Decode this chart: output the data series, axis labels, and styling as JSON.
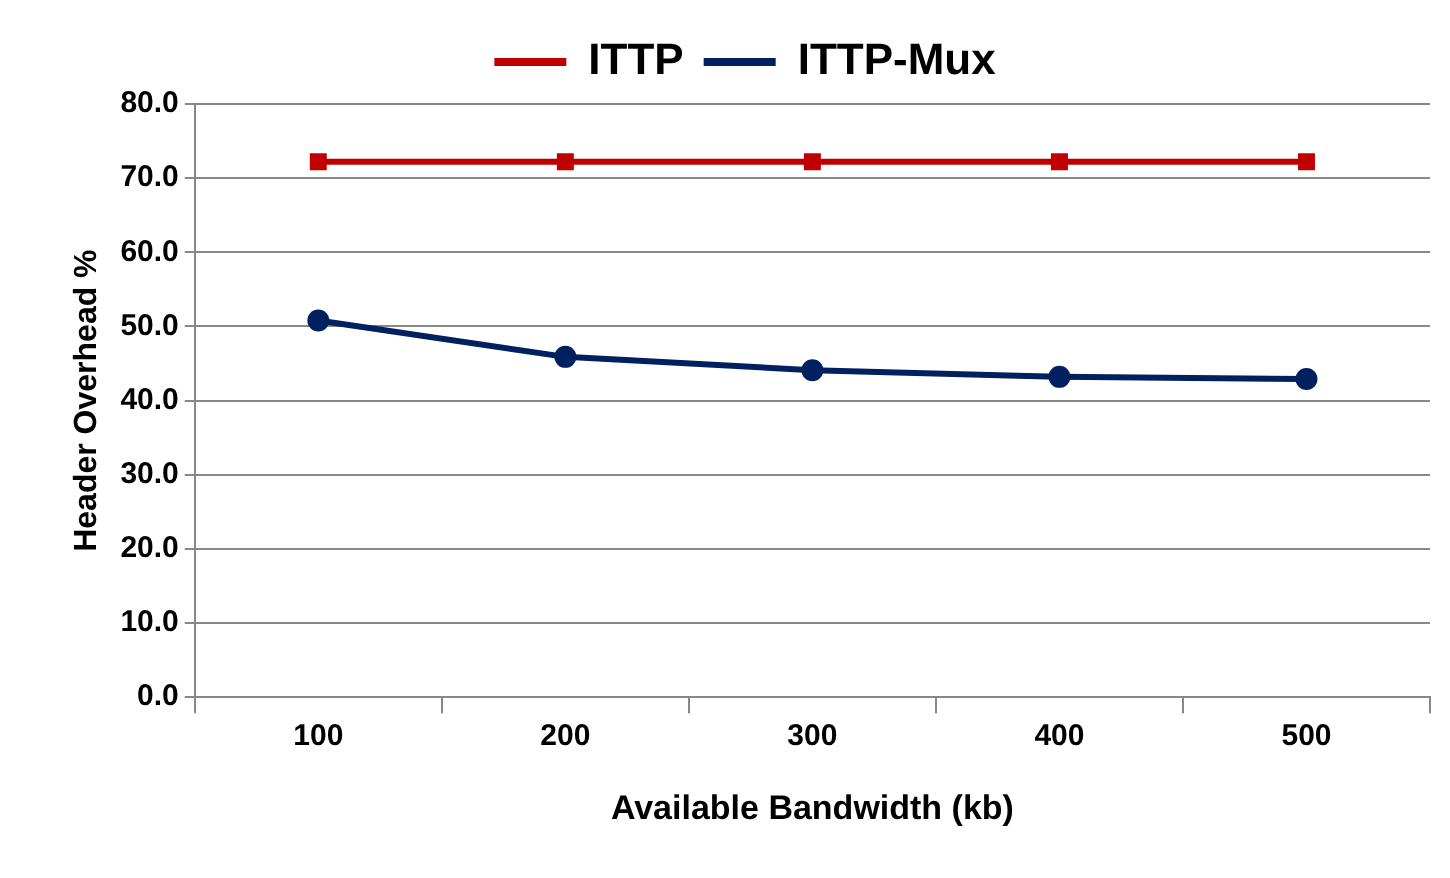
{
  "chart_data": {
    "type": "line",
    "xlabel": "Available Bandwidth (kb)",
    "ylabel": "Header Overhead %",
    "categories": [
      "100",
      "200",
      "300",
      "400",
      "500"
    ],
    "series": [
      {
        "name": "ITTP",
        "color": "#c00000",
        "marker": "square",
        "values": [
          72.2,
          72.2,
          72.2,
          72.2,
          72.2
        ]
      },
      {
        "name": "ITTP-Mux",
        "color": "#002060",
        "marker": "circle",
        "values": [
          50.8,
          45.9,
          44.1,
          43.2,
          42.9
        ]
      }
    ],
    "ylim": [
      0,
      80
    ],
    "yticks": [
      {
        "value": 0,
        "label": "0.0"
      },
      {
        "value": 10,
        "label": "10.0"
      },
      {
        "value": 20,
        "label": "20.0"
      },
      {
        "value": 30,
        "label": "30.0"
      },
      {
        "value": 40,
        "label": "40.0"
      },
      {
        "value": 50,
        "label": "50.0"
      },
      {
        "value": 60,
        "label": "60.0"
      },
      {
        "value": 70,
        "label": "70.0"
      },
      {
        "value": 80,
        "label": "80.0"
      }
    ],
    "grid": "y",
    "legend": "top",
    "line_style": "solid"
  }
}
